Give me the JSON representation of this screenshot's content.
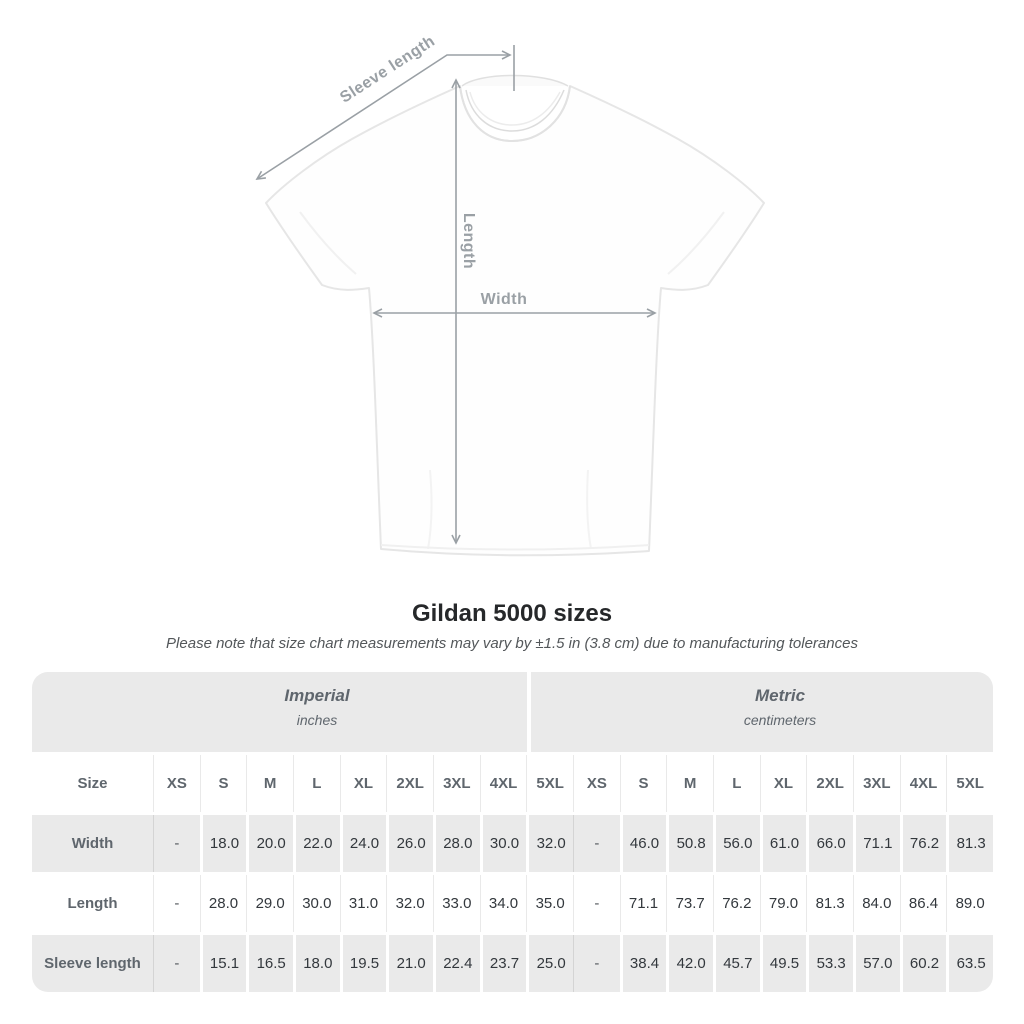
{
  "diagram": {
    "labels": {
      "sleeve": "Sleeve length",
      "length": "Length",
      "width": "Width"
    },
    "line_color": "#9aa0a5",
    "shirt_fill": "#fefefe",
    "shirt_edge": "#e6e6e6"
  },
  "heading": {
    "title": "Gildan 5000 sizes",
    "subtitle": "Please note that size chart measurements may vary by ±1.5 in (3.8 cm) due to manufacturing tolerances"
  },
  "table": {
    "corner_header": "Size",
    "unit_groups": [
      {
        "label": "Imperial",
        "sublabel": "inches"
      },
      {
        "label": "Metric",
        "sublabel": "centimeters"
      }
    ],
    "sizes": [
      "XS",
      "S",
      "M",
      "L",
      "XL",
      "2XL",
      "3XL",
      "4XL",
      "5XL"
    ],
    "rows": [
      {
        "label": "Width",
        "imperial": [
          "-",
          "18.0",
          "20.0",
          "22.0",
          "24.0",
          "26.0",
          "28.0",
          "30.0",
          "32.0"
        ],
        "metric": [
          "-",
          "46.0",
          "50.8",
          "56.0",
          "61.0",
          "66.0",
          "71.1",
          "76.2",
          "81.3"
        ]
      },
      {
        "label": "Length",
        "imperial": [
          "-",
          "28.0",
          "29.0",
          "30.0",
          "31.0",
          "32.0",
          "33.0",
          "34.0",
          "35.0"
        ],
        "metric": [
          "-",
          "71.1",
          "73.7",
          "76.2",
          "79.0",
          "81.3",
          "84.0",
          "86.4",
          "89.0"
        ]
      },
      {
        "label": "Sleeve length",
        "imperial": [
          "-",
          "15.1",
          "16.5",
          "18.0",
          "19.5",
          "21.0",
          "22.4",
          "23.7",
          "25.0"
        ],
        "metric": [
          "-",
          "38.4",
          "42.0",
          "45.7",
          "49.5",
          "53.3",
          "57.0",
          "60.2",
          "63.5"
        ]
      }
    ],
    "colors": {
      "band": "#eaeaea",
      "stripe": "#eaeaea",
      "header_text": "#5f666d",
      "value_text": "#33383d"
    }
  }
}
